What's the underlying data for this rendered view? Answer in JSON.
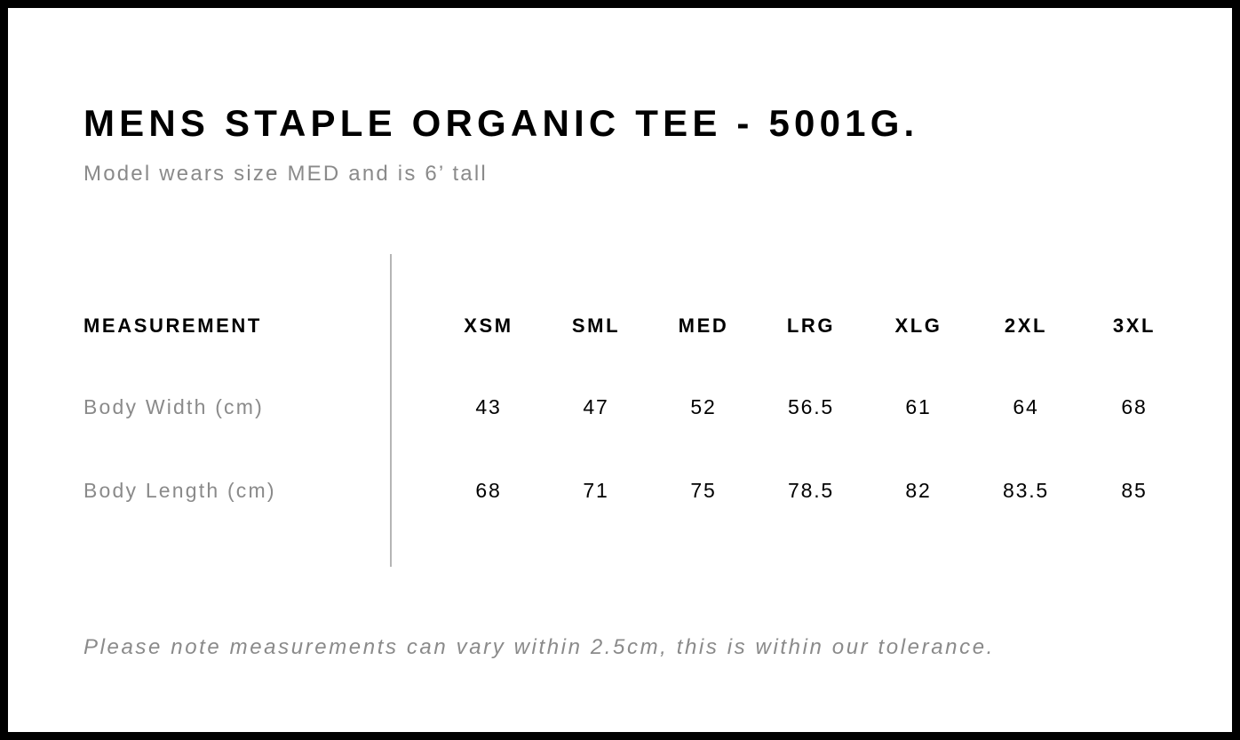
{
  "title": "MENS STAPLE ORGANIC TEE - 5001G.",
  "subtitle": "Model wears size MED and is 6’ tall",
  "table": {
    "header_label": "MEASUREMENT",
    "sizes": [
      "XSM",
      "SML",
      "MED",
      "LRG",
      "XLG",
      "2XL",
      "3XL"
    ],
    "rows": [
      {
        "label": "Body Width (cm)",
        "values": [
          "43",
          "47",
          "52",
          "56.5",
          "61",
          "64",
          "68"
        ]
      },
      {
        "label": "Body Length (cm)",
        "values": [
          "68",
          "71",
          "75",
          "78.5",
          "82",
          "83.5",
          "85"
        ]
      }
    ]
  },
  "footer_note": "Please note measurements can vary within 2.5cm, this is within our tolerance."
}
